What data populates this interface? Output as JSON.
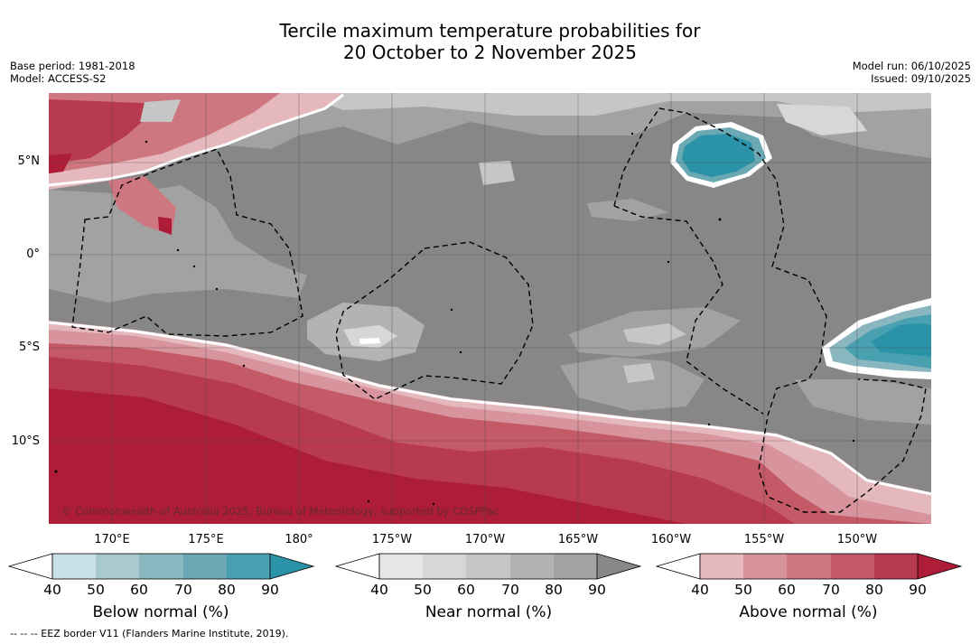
{
  "header": {
    "title_line1": "Tercile maximum temperature probabilities for",
    "title_line2": "20 October to 2 November 2025",
    "base_period": "Base period: 1981-2018",
    "model": "Model: ACCESS-S2",
    "model_run": "Model run: 06/10/2025",
    "issued": "Issued: 09/10/2025"
  },
  "map": {
    "lat_labels": [
      "5°N",
      "0°",
      "5°S",
      "10°S"
    ],
    "lon_labels": [
      "170°E",
      "175°E",
      "180°",
      "175°W",
      "170°W",
      "165°W",
      "160°W",
      "155°W",
      "150°W"
    ],
    "copyright": "© Commonwealth of Australia 2025, Bureau of Meteorology, supported by COSPPac"
  },
  "colorbars": [
    {
      "label": "Below normal (%)",
      "ticks": [
        "40",
        "50",
        "60",
        "70",
        "80",
        "90"
      ],
      "colors": [
        "#c9e0e6",
        "#a8c9ce",
        "#8ab7bf",
        "#6aa8b4",
        "#49a0b0",
        "#2a93a7"
      ]
    },
    {
      "label": "Near normal (%)",
      "ticks": [
        "40",
        "50",
        "60",
        "70",
        "80",
        "90"
      ],
      "colors": [
        "#e6e6e6",
        "#d7d7d7",
        "#c6c6c6",
        "#b3b3b3",
        "#a2a2a2",
        "#888888"
      ]
    },
    {
      "label": "Above normal (%)",
      "ticks": [
        "40",
        "50",
        "60",
        "70",
        "80",
        "90"
      ],
      "colors": [
        "#e4b8bd",
        "#d8949c",
        "#ce7780",
        "#c45a68",
        "#b83a4f",
        "#ae1d38"
      ]
    }
  ],
  "footer": {
    "eez_note": "--  --  -- EEZ border V11 (Flanders Marine Institute, 2019)."
  }
}
